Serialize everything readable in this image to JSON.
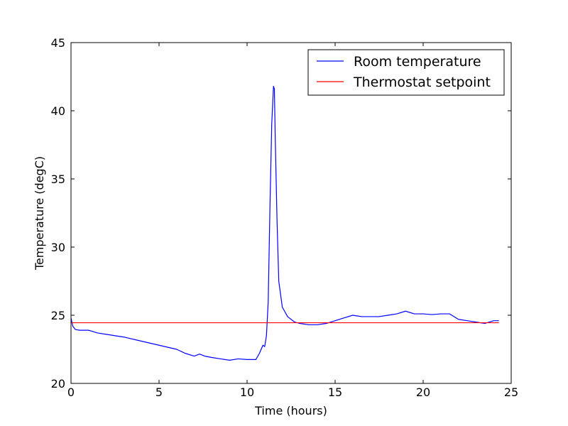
{
  "chart_data": {
    "type": "line",
    "xlabel": "Time (hours)",
    "ylabel": "Temperature (degC)",
    "xlim": [
      0,
      25
    ],
    "ylim": [
      20,
      45
    ],
    "xticks": [
      "0",
      "5",
      "10",
      "15",
      "20",
      "25"
    ],
    "yticks": [
      "20",
      "25",
      "30",
      "35",
      "40",
      "45"
    ],
    "grid": false,
    "legend_position": "top-right",
    "series": [
      {
        "name": "Room temperature",
        "color": "#0000ff",
        "x": [
          0.0,
          0.1,
          0.25,
          0.5,
          1.0,
          1.5,
          2.0,
          3.0,
          4.0,
          5.0,
          6.0,
          6.5,
          7.0,
          7.3,
          7.6,
          8.0,
          8.5,
          9.0,
          9.5,
          10.0,
          10.5,
          10.7,
          10.9,
          11.0,
          11.1,
          11.2,
          11.3,
          11.4,
          11.5,
          11.55,
          11.6,
          11.7,
          11.8,
          12.0,
          12.3,
          12.7,
          13.0,
          13.5,
          14.0,
          14.5,
          15.0,
          15.5,
          16.0,
          16.5,
          17.0,
          17.5,
          18.0,
          18.5,
          19.0,
          19.5,
          20.0,
          20.5,
          21.0,
          21.5,
          22.0,
          22.5,
          23.0,
          23.5,
          24.0,
          24.3
        ],
        "y": [
          24.8,
          24.2,
          23.95,
          23.9,
          23.9,
          23.7,
          23.6,
          23.4,
          23.1,
          22.8,
          22.5,
          22.2,
          22.0,
          22.15,
          22.0,
          21.9,
          21.8,
          21.7,
          21.8,
          21.75,
          21.75,
          22.2,
          22.8,
          22.7,
          23.5,
          26.0,
          33.0,
          39.0,
          41.8,
          41.6,
          38.0,
          32.0,
          27.5,
          25.6,
          24.9,
          24.5,
          24.4,
          24.3,
          24.3,
          24.4,
          24.6,
          24.8,
          25.0,
          24.9,
          24.9,
          24.9,
          25.0,
          25.1,
          25.3,
          25.1,
          25.1,
          25.05,
          25.1,
          25.1,
          24.7,
          24.6,
          24.5,
          24.4,
          24.6,
          24.6
        ]
      },
      {
        "name": "Thermostat setpoint",
        "color": "#ff0000",
        "x": [
          0.0,
          24.3
        ],
        "y": [
          24.45,
          24.45
        ]
      }
    ]
  }
}
